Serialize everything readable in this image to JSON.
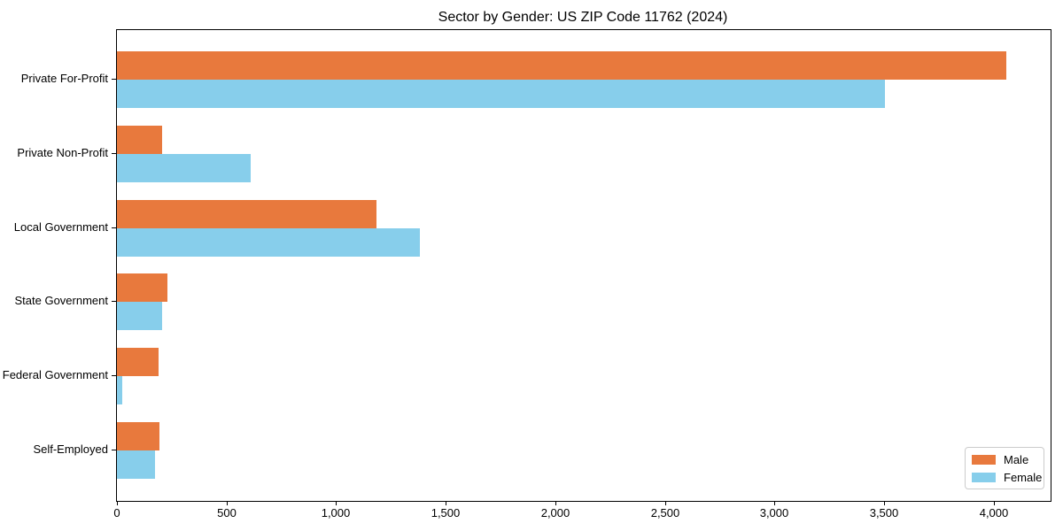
{
  "chart_data": {
    "type": "bar",
    "orientation": "horizontal",
    "title": "Sector by Gender: US ZIP Code 11762 (2024)",
    "categories": [
      "Private For-Profit",
      "Private Non-Profit",
      "Local Government",
      "State Government",
      "Federal Government",
      "Self-Employed"
    ],
    "series": [
      {
        "name": "Male",
        "color": "#E8793D",
        "values": [
          4056,
          207,
          1183,
          229,
          189,
          193
        ]
      },
      {
        "name": "Female",
        "color": "#87CEEB",
        "values": [
          3503,
          611,
          1381,
          207,
          24,
          175
        ]
      }
    ],
    "xlabel": "",
    "ylabel": "",
    "xlim": [
      0,
      4260
    ],
    "xticks": [
      0,
      500,
      1000,
      1500,
      2000,
      2500,
      3000,
      3500,
      4000
    ],
    "xtick_labels": [
      "0",
      "500",
      "1,000",
      "1,500",
      "2,000",
      "2,500",
      "3,000",
      "3,500",
      "4,000"
    ],
    "grid": false,
    "legend": {
      "position": "lower right"
    }
  }
}
